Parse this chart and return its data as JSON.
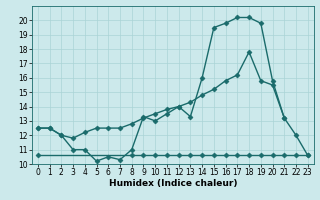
{
  "bg_color": "#cce9eb",
  "grid_color": "#aad4d6",
  "line_color": "#1a6b6b",
  "line_width": 1.0,
  "marker": "D",
  "marker_size": 2.5,
  "xlabel": "Humidex (Indice chaleur)",
  "xlabel_fontsize": 6.5,
  "tick_fontsize": 5.5,
  "xlim": [
    -0.5,
    23.5
  ],
  "ylim": [
    10,
    21
  ],
  "yticks": [
    10,
    11,
    12,
    13,
    14,
    15,
    16,
    17,
    18,
    19,
    20
  ],
  "xticks": [
    0,
    1,
    2,
    3,
    4,
    5,
    6,
    7,
    8,
    9,
    10,
    11,
    12,
    13,
    14,
    15,
    16,
    17,
    18,
    19,
    20,
    21,
    22,
    23
  ],
  "line1_x": [
    0,
    1,
    2,
    3,
    4,
    5,
    6,
    7,
    8,
    9,
    10,
    11,
    12,
    13,
    14,
    15,
    16,
    17,
    18,
    19,
    20,
    21,
    22,
    23
  ],
  "line1_y": [
    12.5,
    12.5,
    12.0,
    11.0,
    11.0,
    10.2,
    10.5,
    10.3,
    11.0,
    13.3,
    13.0,
    13.5,
    14.0,
    13.3,
    16.0,
    19.5,
    19.8,
    20.2,
    20.2,
    19.8,
    15.8,
    13.2,
    12.0,
    10.6
  ],
  "line2_x": [
    0,
    1,
    2,
    3,
    4,
    5,
    6,
    7,
    8,
    9,
    10,
    11,
    12,
    13,
    14,
    15,
    16,
    17,
    18,
    19,
    20,
    21
  ],
  "line2_y": [
    12.5,
    12.5,
    12.0,
    11.8,
    12.2,
    12.5,
    12.5,
    12.5,
    12.8,
    13.2,
    13.5,
    13.8,
    14.0,
    14.3,
    14.8,
    15.2,
    15.8,
    16.2,
    17.8,
    15.8,
    15.5,
    13.2
  ],
  "line3_x": [
    0,
    8,
    9,
    10,
    11,
    12,
    13,
    14,
    15,
    16,
    17,
    18,
    19,
    20,
    21,
    22,
    23
  ],
  "line3_y": [
    10.6,
    10.6,
    10.6,
    10.6,
    10.6,
    10.6,
    10.6,
    10.6,
    10.6,
    10.6,
    10.6,
    10.6,
    10.6,
    10.6,
    10.6,
    10.6,
    10.6
  ]
}
